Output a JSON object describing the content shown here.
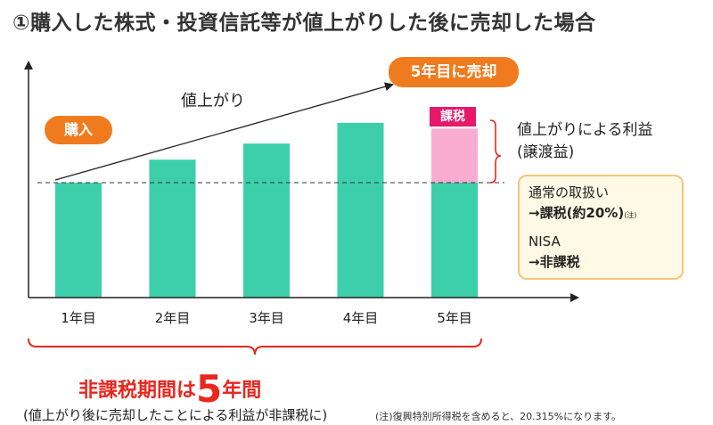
{
  "title": "①購入した株式・投資信託等が値上がりした後に売却した場合",
  "labels": {
    "buy": "購入",
    "sell": "5年目に売却",
    "rise": "値上がり",
    "tax": "課税",
    "profit_line1": "値上がりによる利益",
    "profit_line2": "(譲渡益)"
  },
  "tax_box": {
    "normal_label": "通常の取扱い",
    "normal_value": "→課税(約20%)",
    "normal_note": "(注)",
    "nisa_label": "NISA",
    "nisa_value": "→非課税"
  },
  "period": {
    "prefix": "非課税期間は",
    "number": "5",
    "suffix": "年間",
    "note": "(値上がり後に売却したことによる利益が非課税に)"
  },
  "footnote": "(注)復興特別所得税を含めると、20.315%になります。",
  "chart_data": {
    "type": "bar",
    "categories": [
      "1年目",
      "2年目",
      "3年目",
      "4年目",
      "5年目"
    ],
    "series": [
      {
        "values": [
          100,
          120,
          134,
          152,
          100
        ]
      },
      {
        "values": [
          0,
          0,
          0,
          0,
          47
        ]
      }
    ],
    "colors": {
      "bar": "#3ccfaa",
      "gain": "#f8add0",
      "tax": "#e6186a",
      "accent": "#f07b1e",
      "period": "#e8271e"
    }
  }
}
